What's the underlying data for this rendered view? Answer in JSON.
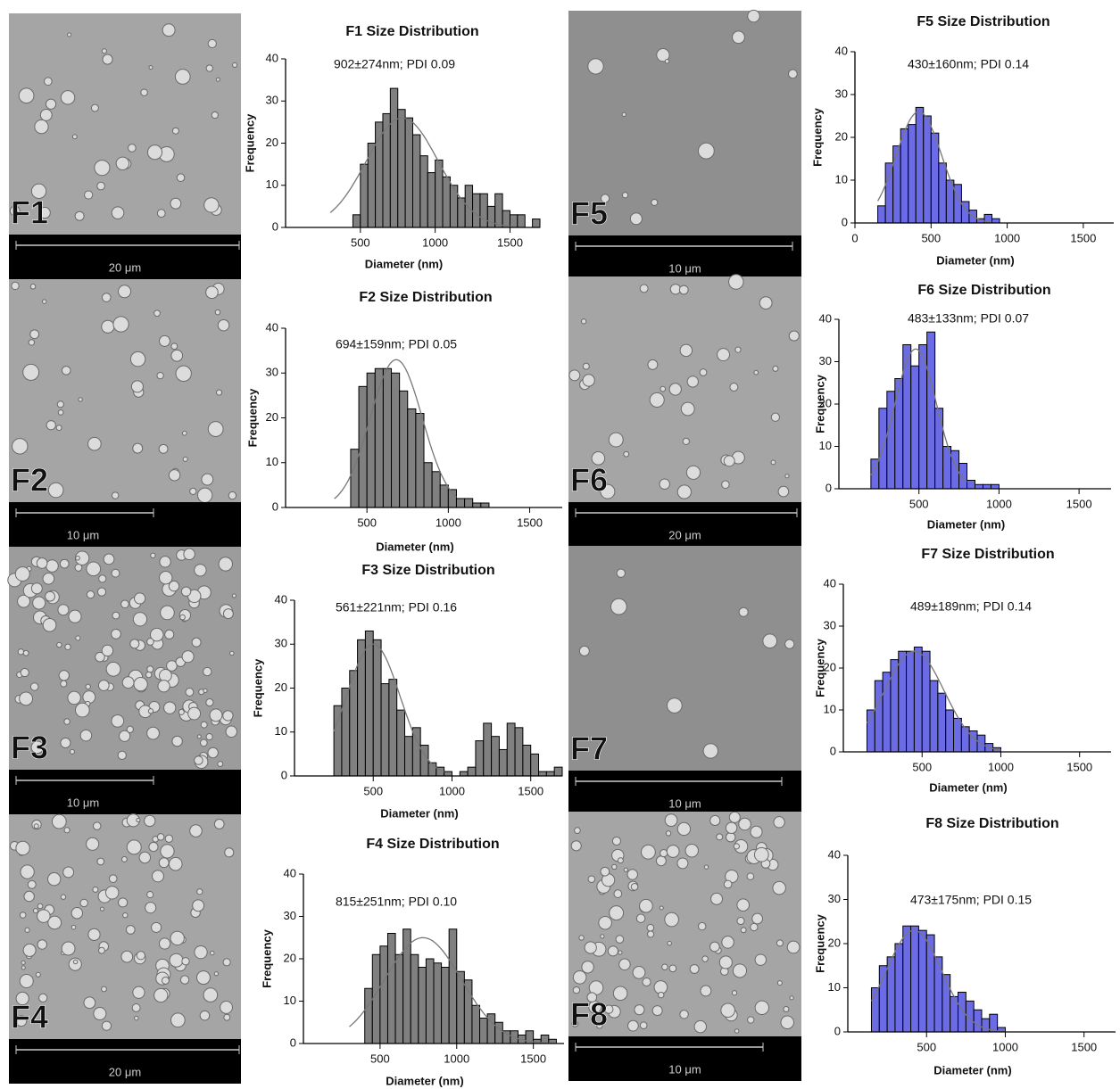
{
  "micrographs": [
    {
      "label": "F1",
      "scale_bar": "20 μm"
    },
    {
      "label": "F2",
      "scale_bar": "10 μm"
    },
    {
      "label": "F3",
      "scale_bar": "10 μm"
    },
    {
      "label": "F4",
      "scale_bar": "20 μm"
    },
    {
      "label": "F5",
      "scale_bar": "10 μm"
    },
    {
      "label": "F6",
      "scale_bar": "20 μm"
    },
    {
      "label": "F7",
      "scale_bar": "10 μm"
    },
    {
      "label": "F8",
      "scale_bar": "10 μm"
    }
  ],
  "chart_data": [
    {
      "type": "histogram",
      "title": "F1 Size Distribution",
      "annotation": "902±274nm; PDI 0.09",
      "x_label": "Diameter (nm)",
      "y_label": "Frequency",
      "color": "#808080",
      "bins": [
        450,
        500,
        550,
        600,
        650,
        700,
        750,
        800,
        850,
        900,
        950,
        1000,
        1050,
        1100,
        1150,
        1200,
        1250,
        1300,
        1350,
        1400,
        1450,
        1500,
        1550,
        1600,
        1650,
        1700
      ],
      "values": [
        3,
        15,
        20,
        25,
        27,
        33,
        28,
        26,
        22,
        17,
        13,
        16,
        12,
        10,
        7,
        10,
        8,
        8,
        5,
        8,
        4,
        3,
        3,
        0,
        2
      ],
      "fit": {
        "mean": 780,
        "sd": 240,
        "peak": 26,
        "range": [
          300,
          1500
        ]
      },
      "xlim": [
        0,
        1700
      ],
      "xticks": [
        500,
        1000,
        1500
      ],
      "ylim": [
        0,
        40
      ],
      "yticks": [
        0,
        10,
        20,
        30,
        40
      ]
    },
    {
      "type": "histogram",
      "title": "F2 Size Distribution",
      "annotation": "694±159nm; PDI 0.05",
      "x_label": "Diameter (nm)",
      "y_label": "Frequency",
      "color": "#808080",
      "bins": [
        400,
        450,
        500,
        550,
        600,
        650,
        700,
        750,
        800,
        850,
        900,
        950,
        1000,
        1050,
        1100,
        1150,
        1200,
        1250
      ],
      "values": [
        13,
        27,
        30,
        31,
        31,
        30,
        26,
        22,
        21,
        10,
        8,
        5,
        4,
        2,
        2,
        1,
        1
      ],
      "fit": {
        "mean": 680,
        "sd": 160,
        "peak": 33,
        "range": [
          300,
          1050
        ]
      },
      "xlim": [
        0,
        1700
      ],
      "xticks": [
        500,
        1000,
        1500
      ],
      "ylim": [
        0,
        40
      ],
      "yticks": [
        0,
        10,
        20,
        30,
        40
      ]
    },
    {
      "type": "histogram",
      "title": "F3 Size Distribution",
      "annotation": "561±221nm; PDI 0.16",
      "x_label": "Diameter (nm)",
      "y_label": "Frequency",
      "color": "#808080",
      "bins": [
        250,
        300,
        350,
        400,
        450,
        500,
        550,
        600,
        650,
        700,
        750,
        800,
        850,
        900,
        950,
        1000,
        1050,
        1100,
        1150,
        1200,
        1250,
        1300,
        1350,
        1400,
        1450,
        1500,
        1550,
        1600,
        1650,
        1700
      ],
      "values": [
        16,
        20,
        24,
        31,
        33,
        31,
        21,
        22,
        15,
        9,
        11,
        7,
        3,
        2,
        1,
        0,
        1,
        2,
        8,
        12,
        9,
        6,
        12,
        11,
        7,
        5,
        1,
        1,
        2
      ],
      "fit": {
        "mean": 500,
        "sd": 170,
        "peak": 30,
        "range": [
          250,
          950
        ]
      },
      "xlim": [
        0,
        1700
      ],
      "xticks": [
        500,
        1000,
        1500
      ],
      "ylim": [
        0,
        40
      ],
      "yticks": [
        0,
        10,
        20,
        30,
        40
      ]
    },
    {
      "type": "histogram",
      "title": "F4 Size Distribution",
      "annotation": "815±251nm; PDI 0.10",
      "x_label": "Diameter (nm)",
      "y_label": "Frequency",
      "color": "#808080",
      "bins": [
        400,
        450,
        500,
        550,
        600,
        650,
        700,
        750,
        800,
        850,
        900,
        950,
        1000,
        1050,
        1100,
        1150,
        1200,
        1250,
        1300,
        1350,
        1400,
        1450,
        1500,
        1550,
        1600,
        1650
      ],
      "values": [
        13,
        21,
        23,
        26,
        21,
        27,
        21,
        18,
        20,
        19,
        18,
        27,
        17,
        15,
        9,
        6,
        7,
        5,
        3,
        3,
        2,
        3,
        1,
        2,
        1
      ],
      "fit": {
        "mean": 780,
        "sd": 250,
        "peak": 25,
        "range": [
          300,
          1650
        ]
      },
      "xlim": [
        0,
        1700
      ],
      "xticks": [
        500,
        1000,
        1500
      ],
      "ylim": [
        0,
        40
      ],
      "yticks": [
        0,
        10,
        20,
        30,
        40
      ]
    },
    {
      "type": "histogram",
      "title": "F5 Size Distribution",
      "annotation": "430±160nm; PDI 0.14",
      "x_label": "Diameter (nm)",
      "y_label": "Frequency",
      "color": "#6b6be6",
      "bins": [
        150,
        200,
        250,
        300,
        350,
        400,
        450,
        500,
        550,
        600,
        650,
        700,
        750,
        800,
        850,
        900,
        950
      ],
      "values": [
        4,
        14,
        18,
        22,
        23,
        27,
        25,
        21,
        14,
        10,
        9,
        5,
        3,
        1,
        2,
        1
      ],
      "fit": {
        "mean": 420,
        "sd": 150,
        "peak": 26,
        "range": [
          150,
          900
        ]
      },
      "xlim": [
        0,
        1700
      ],
      "xticks": [
        0,
        500,
        1000,
        1500
      ],
      "ylim": [
        0,
        40
      ],
      "yticks": [
        0,
        10,
        20,
        30,
        40
      ]
    },
    {
      "type": "histogram",
      "title": "F6 Size Distribution",
      "annotation": "483±133nm; PDI 0.07",
      "x_label": "Diameter (nm)",
      "y_label": "Frequency",
      "color": "#6b6be6",
      "bins": [
        200,
        250,
        300,
        350,
        400,
        450,
        500,
        550,
        600,
        650,
        700,
        750,
        800,
        850,
        900,
        950,
        1000
      ],
      "values": [
        7,
        19,
        23,
        26,
        34,
        29,
        34,
        37,
        19,
        10,
        9,
        6,
        2,
        1,
        1,
        1
      ],
      "fit": {
        "mean": 480,
        "sd": 130,
        "peak": 33,
        "range": [
          200,
          800
        ]
      },
      "xlim": [
        0,
        1700
      ],
      "xticks": [
        500,
        1000,
        1500
      ],
      "ylim": [
        0,
        40
      ],
      "yticks": [
        0,
        10,
        20,
        30,
        40
      ]
    },
    {
      "type": "histogram",
      "title": "F7 Size Distribution",
      "annotation": "489±189nm; PDI 0.14",
      "x_label": "Diameter (nm)",
      "y_label": "Frequency",
      "color": "#6b6be6",
      "bins": [
        150,
        200,
        250,
        300,
        350,
        400,
        450,
        500,
        550,
        600,
        650,
        700,
        750,
        800,
        850,
        900,
        950,
        1000
      ],
      "values": [
        10,
        17,
        19,
        22,
        24,
        24,
        25,
        24,
        17,
        14,
        10,
        8,
        6,
        5,
        4,
        2,
        1
      ],
      "fit": {
        "mean": 450,
        "sd": 190,
        "peak": 24,
        "range": [
          150,
          1000
        ]
      },
      "xlim": [
        0,
        1700
      ],
      "xticks": [
        500,
        1000,
        1500
      ],
      "ylim": [
        0,
        40
      ],
      "yticks": [
        0,
        10,
        20,
        30,
        40
      ]
    },
    {
      "type": "histogram",
      "title": "F8 Size Distribution",
      "annotation": "473±175nm; PDI 0.15",
      "x_label": "Diameter (nm)",
      "y_label": "Frequency",
      "color": "#6b6be6",
      "bins": [
        150,
        200,
        250,
        300,
        350,
        400,
        450,
        500,
        550,
        600,
        650,
        700,
        750,
        800,
        850,
        900,
        950,
        1000
      ],
      "values": [
        10,
        15,
        17,
        20,
        24,
        24,
        23,
        22,
        17,
        13,
        8,
        9,
        7,
        5,
        3,
        4,
        1
      ],
      "fit": {
        "mean": 420,
        "sd": 175,
        "peak": 23,
        "range": [
          150,
          1000
        ]
      },
      "xlim": [
        0,
        1700
      ],
      "xticks": [
        500,
        1000,
        1500
      ],
      "ylim": [
        0,
        40
      ],
      "yticks": [
        0,
        10,
        20,
        30,
        40
      ]
    }
  ]
}
